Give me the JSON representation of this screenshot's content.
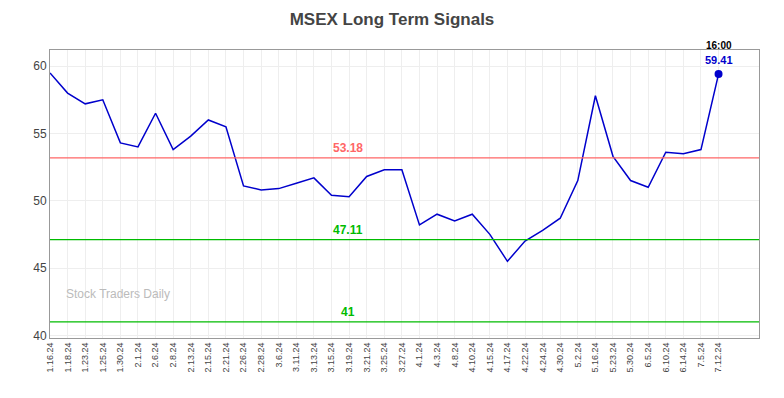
{
  "chart_data": {
    "type": "line",
    "title": "MSEX Long Term Signals",
    "categories": [
      "1.16.24",
      "1.18.24",
      "1.23.24",
      "1.25.24",
      "1.30.24",
      "2.1.24",
      "2.6.24",
      "2.8.24",
      "2.13.24",
      "2.15.24",
      "2.21.24",
      "2.26.24",
      "2.28.24",
      "3.6.24",
      "3.11.24",
      "3.13.24",
      "3.15.24",
      "3.19.24",
      "3.21.24",
      "3.25.24",
      "3.27.24",
      "4.1.24",
      "4.3.24",
      "4.8.24",
      "4.10.24",
      "4.15.24",
      "4.17.24",
      "4.22.24",
      "4.24.24",
      "4.30.24",
      "5.2.24",
      "5.16.24",
      "5.23.24",
      "5.30.24",
      "6.5.24",
      "6.10.24",
      "6.14.24",
      "7.5.24",
      "7.12.24"
    ],
    "values": [
      59.5,
      58.0,
      57.2,
      57.5,
      54.3,
      54.0,
      56.5,
      53.8,
      54.8,
      56.0,
      55.5,
      51.1,
      50.8,
      50.9,
      51.3,
      51.7,
      50.4,
      50.3,
      51.8,
      52.3,
      52.3,
      48.2,
      49.0,
      48.5,
      49.0,
      47.5,
      45.5,
      47.0,
      47.8,
      48.7,
      51.5,
      57.8,
      53.3,
      51.5,
      51.0,
      53.6,
      53.5,
      53.8,
      59.41
    ],
    "color": "#0000cc",
    "hlines": [
      {
        "value": 53.18,
        "label": "53.18",
        "color": "#ff6666"
      },
      {
        "value": 47.11,
        "label": "47.11",
        "color": "#00bb00"
      },
      {
        "value": 41.0,
        "label": "41",
        "color": "#00bb00"
      }
    ],
    "annotations": {
      "last_time": "16:00",
      "last_price": "59.41",
      "watermark": "Stock Traders Daily"
    },
    "ylim": [
      39.8,
      61.2
    ],
    "yticks": [
      40,
      45,
      50,
      55,
      60
    ],
    "grid": true
  }
}
